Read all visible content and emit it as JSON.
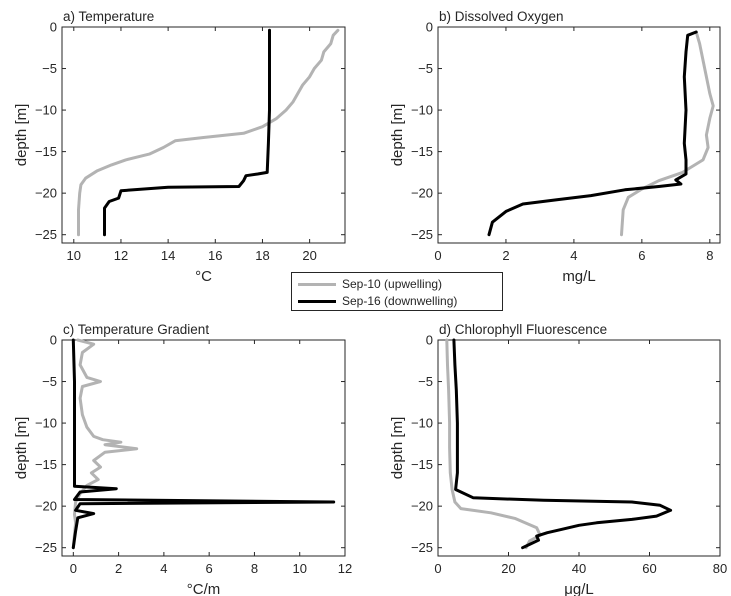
{
  "legend": [
    {
      "label": "Sep-10 (upwelling)",
      "color": "#b3b3b3"
    },
    {
      "label": "Sep-16 (downwelling)",
      "color": "#000000"
    }
  ],
  "chart_data": [
    {
      "type": "line",
      "title": "a) Temperature",
      "xlabel": "°C",
      "ylabel": "depth [m]",
      "xlim": [
        9.5,
        21.5
      ],
      "ylim": [
        -26,
        0
      ],
      "xticks": [
        10,
        12,
        14,
        16,
        18,
        20
      ],
      "yticks": [
        0,
        -5,
        -10,
        -15,
        -20,
        -25
      ],
      "series": [
        {
          "name": "Sep-10 (upwelling)",
          "color": "#b3b3b3",
          "points": [
            [
              21.2,
              -0.4
            ],
            [
              21.0,
              -1
            ],
            [
              20.9,
              -2
            ],
            [
              20.6,
              -3
            ],
            [
              20.5,
              -4
            ],
            [
              20.2,
              -5
            ],
            [
              20.0,
              -6
            ],
            [
              19.7,
              -7
            ],
            [
              19.5,
              -8
            ],
            [
              19.3,
              -9
            ],
            [
              19.0,
              -10
            ],
            [
              18.6,
              -11
            ],
            [
              18.0,
              -12
            ],
            [
              17.2,
              -12.8
            ],
            [
              15.5,
              -13.3
            ],
            [
              14.3,
              -13.7
            ],
            [
              13.8,
              -14.5
            ],
            [
              13.2,
              -15.3
            ],
            [
              12.2,
              -16
            ],
            [
              11.6,
              -16.6
            ],
            [
              11.0,
              -17.3
            ],
            [
              10.5,
              -18.2
            ],
            [
              10.3,
              -19
            ],
            [
              10.25,
              -20
            ],
            [
              10.2,
              -22
            ],
            [
              10.2,
              -25
            ]
          ]
        },
        {
          "name": "Sep-16 (downwelling)",
          "color": "#000000",
          "points": [
            [
              18.3,
              -0.4
            ],
            [
              18.3,
              -5
            ],
            [
              18.3,
              -10
            ],
            [
              18.25,
              -14
            ],
            [
              18.2,
              -17.5
            ],
            [
              17.8,
              -17.7
            ],
            [
              17.3,
              -17.9
            ],
            [
              17.2,
              -18.5
            ],
            [
              17.0,
              -19.2
            ],
            [
              14.0,
              -19.3
            ],
            [
              12.0,
              -19.7
            ],
            [
              11.9,
              -20.6
            ],
            [
              11.5,
              -21
            ],
            [
              11.3,
              -21.8
            ],
            [
              11.3,
              -23
            ],
            [
              11.3,
              -25
            ]
          ]
        }
      ]
    },
    {
      "type": "line",
      "title": "b) Dissolved Oxygen",
      "xlabel": "mg/L",
      "ylabel": "depth [m]",
      "xlim": [
        0,
        8.3
      ],
      "ylim": [
        -26,
        0
      ],
      "xticks": [
        0,
        2,
        4,
        6,
        8
      ],
      "yticks": [
        0,
        -5,
        -10,
        -15,
        -20,
        -25
      ],
      "series": [
        {
          "name": "Sep-10 (upwelling)",
          "color": "#b3b3b3",
          "points": [
            [
              7.6,
              -0.6
            ],
            [
              7.7,
              -2
            ],
            [
              7.8,
              -4
            ],
            [
              7.9,
              -6
            ],
            [
              8.0,
              -8
            ],
            [
              8.1,
              -9.5
            ],
            [
              8.0,
              -11
            ],
            [
              7.9,
              -13
            ],
            [
              7.95,
              -14.5
            ],
            [
              7.8,
              -16
            ],
            [
              7.2,
              -17.5
            ],
            [
              6.5,
              -18.5
            ],
            [
              6.0,
              -19.5
            ],
            [
              5.6,
              -20.5
            ],
            [
              5.45,
              -22
            ],
            [
              5.4,
              -25
            ]
          ]
        },
        {
          "name": "Sep-16 (downwelling)",
          "color": "#000000",
          "points": [
            [
              7.6,
              -0.6
            ],
            [
              7.35,
              -1
            ],
            [
              7.3,
              -3
            ],
            [
              7.25,
              -6
            ],
            [
              7.3,
              -10
            ],
            [
              7.25,
              -14
            ],
            [
              7.3,
              -16
            ],
            [
              7.3,
              -17.7
            ],
            [
              7.0,
              -18.4
            ],
            [
              7.15,
              -18.9
            ],
            [
              6.5,
              -19.2
            ],
            [
              5.5,
              -19.6
            ],
            [
              4.5,
              -20.3
            ],
            [
              3.5,
              -20.8
            ],
            [
              2.5,
              -21.3
            ],
            [
              2.0,
              -22.2
            ],
            [
              1.6,
              -23.5
            ],
            [
              1.5,
              -25
            ]
          ]
        }
      ]
    },
    {
      "type": "line",
      "title": "c) Temperature Gradient",
      "xlabel": "°C/m",
      "ylabel": "depth [m]",
      "xlim": [
        -0.5,
        12
      ],
      "ylim": [
        -26,
        0
      ],
      "xticks": [
        0,
        2,
        4,
        6,
        8,
        10,
        12
      ],
      "yticks": [
        0,
        -5,
        -10,
        -15,
        -20,
        -25
      ],
      "series": [
        {
          "name": "Sep-10 (upwelling)",
          "color": "#b3b3b3",
          "points": [
            [
              0.2,
              0
            ],
            [
              0.9,
              -0.5
            ],
            [
              0.4,
              -1.5
            ],
            [
              0.3,
              -3
            ],
            [
              0.6,
              -4.5
            ],
            [
              1.2,
              -5
            ],
            [
              0.4,
              -5.6
            ],
            [
              0.3,
              -7
            ],
            [
              0.4,
              -9
            ],
            [
              0.6,
              -10.5
            ],
            [
              0.9,
              -11.6
            ],
            [
              1.3,
              -12
            ],
            [
              2.1,
              -12.3
            ],
            [
              1.4,
              -12.6
            ],
            [
              2.8,
              -13.1
            ],
            [
              1.4,
              -13.5
            ],
            [
              0.9,
              -14.5
            ],
            [
              1.2,
              -15.3
            ],
            [
              0.8,
              -16
            ],
            [
              1.1,
              -16.8
            ],
            [
              0.6,
              -17.5
            ],
            [
              0.3,
              -18.5
            ],
            [
              0.1,
              -19.5
            ],
            [
              0.05,
              -21
            ],
            [
              0.1,
              -22
            ],
            [
              0,
              -25
            ]
          ]
        },
        {
          "name": "Sep-16 (downwelling)",
          "color": "#000000",
          "points": [
            [
              0,
              0
            ],
            [
              0.05,
              -5
            ],
            [
              0.05,
              -10
            ],
            [
              0.05,
              -15
            ],
            [
              0.05,
              -17.6
            ],
            [
              1.9,
              -17.9
            ],
            [
              0.3,
              -18.3
            ],
            [
              0.05,
              -19.2
            ],
            [
              11.5,
              -19.5
            ],
            [
              0.3,
              -19.7
            ],
            [
              0.1,
              -20.5
            ],
            [
              0.9,
              -20.9
            ],
            [
              0.2,
              -21.4
            ],
            [
              0.1,
              -23
            ],
            [
              0,
              -25
            ]
          ]
        }
      ]
    },
    {
      "type": "line",
      "title": "d) Chlorophyll Fluorescence",
      "xlabel": "μg/L",
      "ylabel": "depth [m]",
      "xlim": [
        0,
        80
      ],
      "ylim": [
        -26,
        0
      ],
      "xticks": [
        0,
        20,
        40,
        60,
        80
      ],
      "yticks": [
        0,
        -5,
        -10,
        -15,
        -20,
        -25
      ],
      "series": [
        {
          "name": "Sep-10 (upwelling)",
          "color": "#b3b3b3",
          "points": [
            [
              2.5,
              0
            ],
            [
              2.7,
              -3
            ],
            [
              3.0,
              -6
            ],
            [
              3.3,
              -10
            ],
            [
              3.3,
              -13
            ],
            [
              3.5,
              -16
            ],
            [
              4.0,
              -18
            ],
            [
              4.8,
              -19.5
            ],
            [
              6.5,
              -20.3
            ],
            [
              15,
              -20.8
            ],
            [
              22,
              -21.5
            ],
            [
              28,
              -22.6
            ],
            [
              29,
              -23.5
            ],
            [
              26,
              -24.2
            ],
            [
              25,
              -25
            ]
          ]
        },
        {
          "name": "Sep-16 (downwelling)",
          "color": "#000000",
          "points": [
            [
              4.5,
              0
            ],
            [
              4.8,
              -3
            ],
            [
              5.2,
              -6
            ],
            [
              5.5,
              -10
            ],
            [
              5.5,
              -13
            ],
            [
              5.5,
              -16
            ],
            [
              5.0,
              -18
            ],
            [
              10,
              -19
            ],
            [
              30,
              -19.3
            ],
            [
              55,
              -19.5
            ],
            [
              63,
              -19.9
            ],
            [
              66,
              -20.5
            ],
            [
              62,
              -21.2
            ],
            [
              55,
              -21.6
            ],
            [
              45,
              -22.0
            ],
            [
              40,
              -22.3
            ],
            [
              35,
              -22.8
            ],
            [
              31,
              -23.2
            ],
            [
              28,
              -23.6
            ],
            [
              28.5,
              -24.1
            ],
            [
              26,
              -24.6
            ],
            [
              24,
              -25
            ]
          ]
        }
      ]
    }
  ]
}
